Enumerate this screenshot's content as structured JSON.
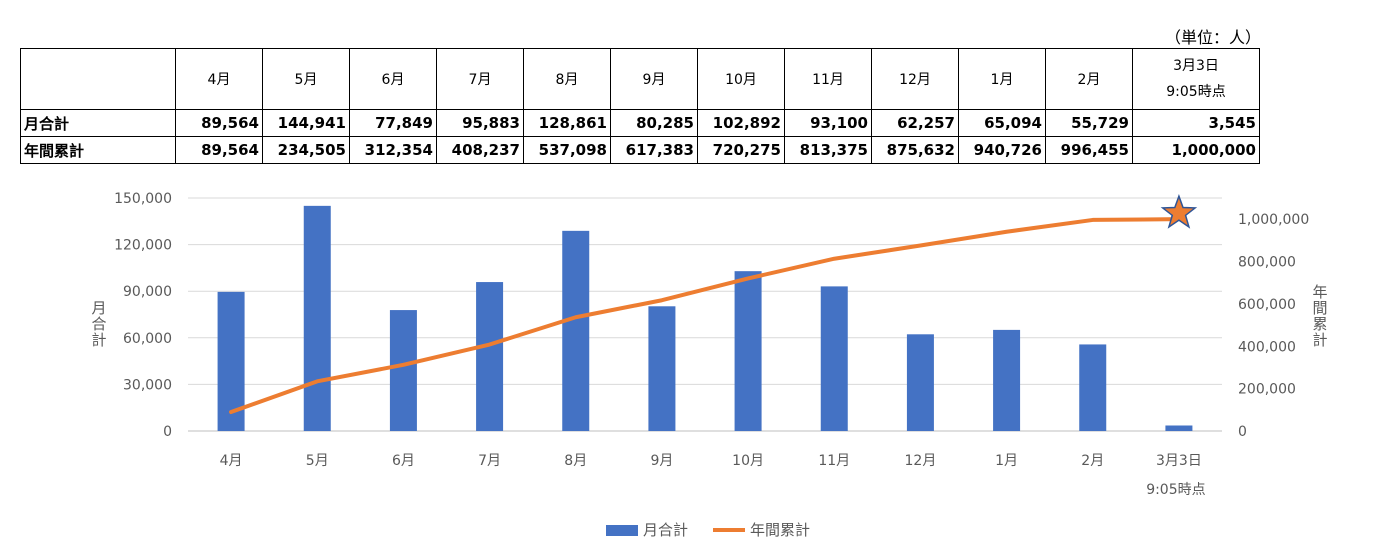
{
  "unit_note": "（単位：人）",
  "table": {
    "columns": [
      "4月",
      "5月",
      "6月",
      "7月",
      "8月",
      "9月",
      "10月",
      "11月",
      "12月",
      "1月",
      "2月",
      "3月3日\n9:05時点"
    ],
    "rows": [
      {
        "label": "月合計",
        "values": [
          "89,564",
          "144,941",
          "77,849",
          "95,883",
          "128,861",
          "80,285",
          "102,892",
          "93,100",
          "62,257",
          "65,094",
          "55,729",
          "3,545"
        ]
      },
      {
        "label": "年間累計",
        "values": [
          "89,564",
          "234,505",
          "312,354",
          "408,237",
          "537,098",
          "617,383",
          "720,275",
          "813,375",
          "875,632",
          "940,726",
          "996,455",
          "1,000,000"
        ]
      }
    ]
  },
  "chart_data": {
    "type": "bar",
    "categories": [
      "4月",
      "5月",
      "6月",
      "7月",
      "8月",
      "9月",
      "10月",
      "11月",
      "12月",
      "1月",
      "2月",
      "3月3日\n9:05時点"
    ],
    "series": [
      {
        "name": "月合計",
        "type": "bar",
        "axis": "left",
        "color": "#4472C4",
        "values": [
          89564,
          144941,
          77849,
          95883,
          128861,
          80285,
          102892,
          93100,
          62257,
          65094,
          55729,
          3545
        ]
      },
      {
        "name": "年間累計",
        "type": "line",
        "axis": "right",
        "color": "#ED7D31",
        "values": [
          89564,
          234505,
          312354,
          408237,
          537098,
          617383,
          720275,
          813375,
          875632,
          940726,
          996455,
          1000000
        ]
      }
    ],
    "ylabel": "月合計",
    "y2label": "年間累計",
    "ylim": [
      0,
      150000
    ],
    "y2lim": [
      0,
      1100000
    ],
    "yticks": [
      "0",
      "30,000",
      "60,000",
      "90,000",
      "120,000",
      "150,000"
    ],
    "y2ticks": [
      "0",
      "200,000",
      "400,000",
      "600,000",
      "800,000",
      "1,000,000"
    ],
    "grid": true,
    "legend_position": "bottom",
    "annotations": [
      {
        "type": "star-marker",
        "series": "年間累計",
        "category_index": 11,
        "color": "#ED7D31"
      }
    ]
  }
}
